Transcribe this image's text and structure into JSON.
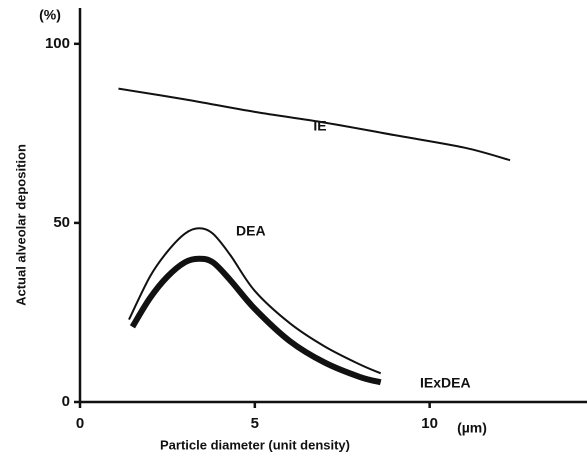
{
  "chart_data": {
    "type": "line",
    "y_label": "Actual alveolar deposition",
    "x_label": "Particle diameter (unit density)",
    "y_unit": "(%)",
    "x_unit": "(µm)",
    "xlim": [
      0,
      14.5
    ],
    "ylim": [
      0,
      110
    ],
    "xticks": [
      0,
      5,
      10
    ],
    "yticks": [
      0,
      50,
      100
    ],
    "series": [
      {
        "name": "IE",
        "color": "#111111",
        "width": 2,
        "x": [
          1.1,
          3,
          5,
          7,
          9,
          11,
          12.3
        ],
        "values": [
          87.5,
          84.5,
          81,
          78,
          74.5,
          71,
          67.5
        ]
      },
      {
        "name": "DEA",
        "color": "#111111",
        "width": 2,
        "x": [
          1.4,
          2,
          2.5,
          3,
          3.4,
          3.8,
          4.3,
          5,
          6,
          7,
          8,
          8.6
        ],
        "values": [
          23,
          35,
          42,
          47,
          48.5,
          47,
          41,
          31,
          22,
          15.5,
          10.5,
          8
        ]
      },
      {
        "name": "IExDEA",
        "color": "#111111",
        "width": 6,
        "x": [
          1.5,
          2,
          2.5,
          3,
          3.4,
          3.8,
          4.3,
          5,
          6,
          7,
          8,
          8.6
        ],
        "values": [
          21,
          29,
          35,
          39,
          40,
          39,
          34,
          26,
          17,
          11,
          7,
          5.5
        ]
      }
    ]
  }
}
